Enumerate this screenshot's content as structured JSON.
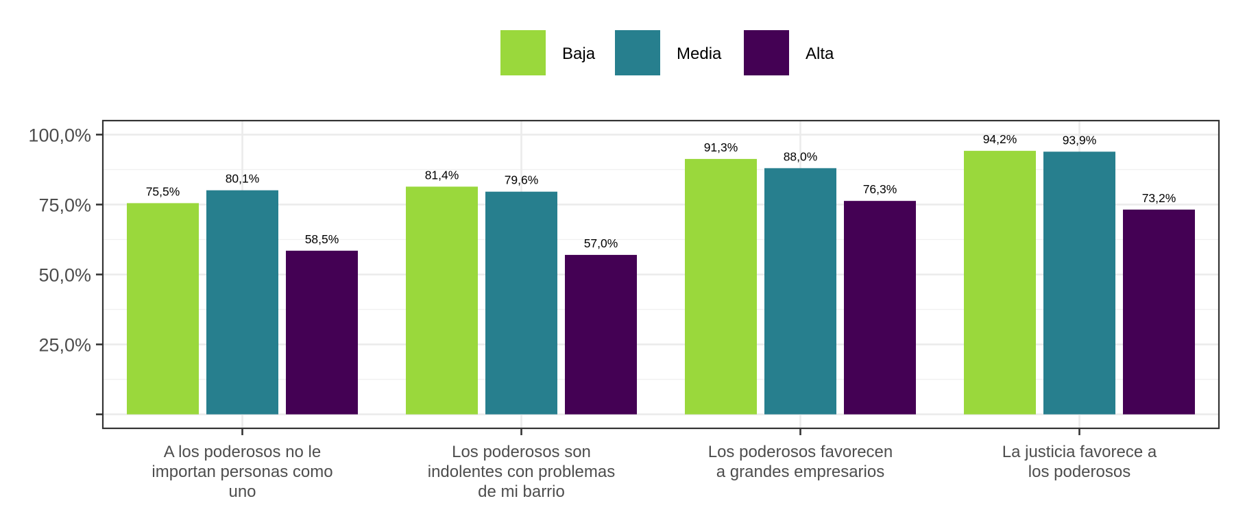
{
  "chart_data": {
    "type": "bar",
    "title": "",
    "xlabel": "",
    "ylabel": "",
    "categories": [
      [
        "A los poderosos no le",
        "importan personas como",
        "uno"
      ],
      [
        "Los poderosos son",
        "indolentes con problemas",
        "de mi barrio"
      ],
      [
        "Los poderosos favorecen",
        "a grandes empresarios"
      ],
      [
        "La justicia favorece a",
        "los poderosos"
      ]
    ],
    "series": [
      {
        "name": "Baja",
        "color": "#9ad83c",
        "values": [
          75.5,
          81.4,
          91.3,
          94.2
        ],
        "labels": [
          "75,5%",
          "81,4%",
          "91,3%",
          "94,2%"
        ]
      },
      {
        "name": "Media",
        "color": "#277f8e",
        "values": [
          80.1,
          79.6,
          88.0,
          93.9
        ],
        "labels": [
          "80,1%",
          "79,6%",
          "88,0%",
          "93,9%"
        ]
      },
      {
        "name": "Alta",
        "color": "#440154",
        "values": [
          58.5,
          57.0,
          76.3,
          73.2
        ],
        "labels": [
          "58,5%",
          "57,0%",
          "76,3%",
          "73,2%"
        ]
      }
    ],
    "yticks": [
      25,
      50,
      75,
      100
    ],
    "ytick_labels": [
      "25,0%",
      "50,0%",
      "75,0%",
      "100,0%"
    ],
    "ylim": [
      -5,
      105
    ],
    "grid": true,
    "legend_position": "top"
  }
}
